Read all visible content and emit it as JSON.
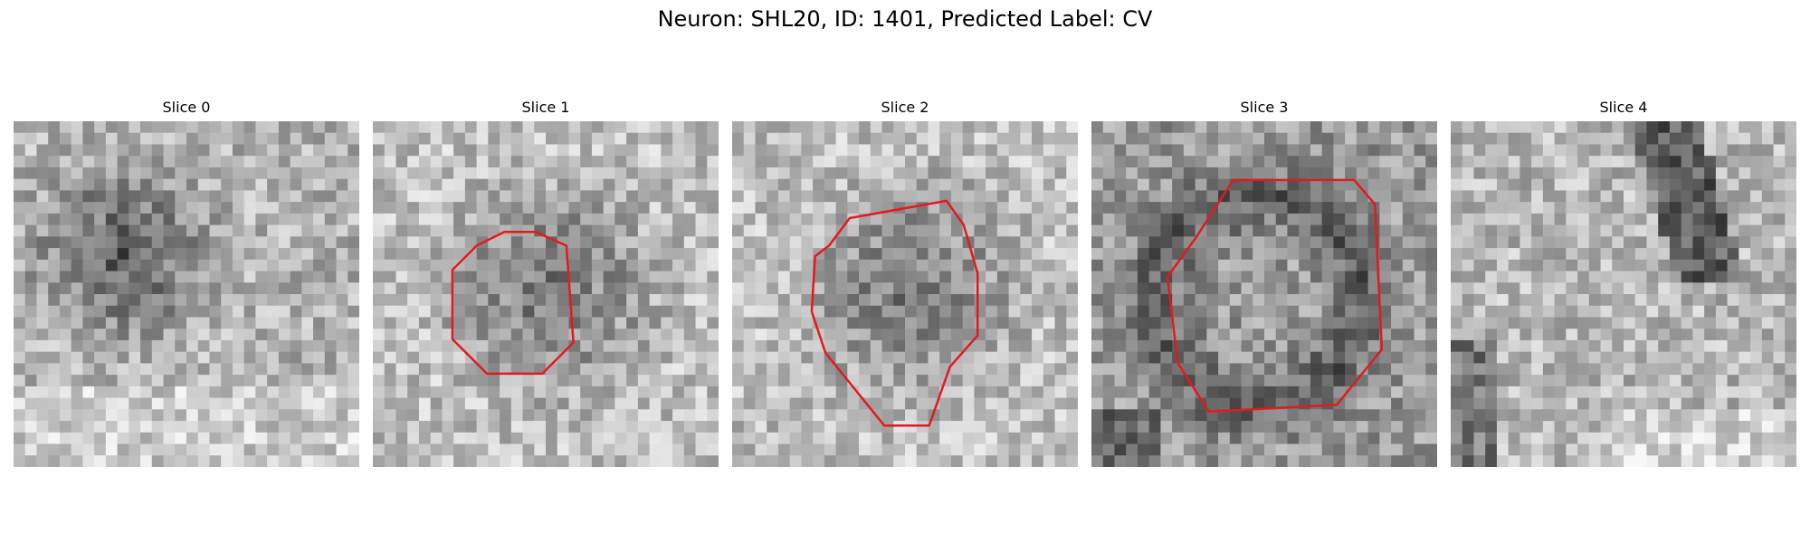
{
  "figure": {
    "title": "Neuron: SHL20, ID: 1401, Predicted Label: CV",
    "contour_color": "#e31a1c"
  },
  "panels": [
    {
      "title": "Slice 0",
      "seed": 11,
      "dark_spot": "upper-left",
      "has_contour": false
    },
    {
      "title": "Slice 1",
      "seed": 23,
      "dark_spot": "center",
      "has_contour": true
    },
    {
      "title": "Slice 2",
      "seed": 37,
      "dark_spot": "center",
      "has_contour": true
    },
    {
      "title": "Slice 3",
      "seed": 41,
      "dark_spot": "ring",
      "has_contour": true
    },
    {
      "title": "Slice 4",
      "seed": 59,
      "dark_spot": "right-band",
      "has_contour": false
    }
  ]
}
